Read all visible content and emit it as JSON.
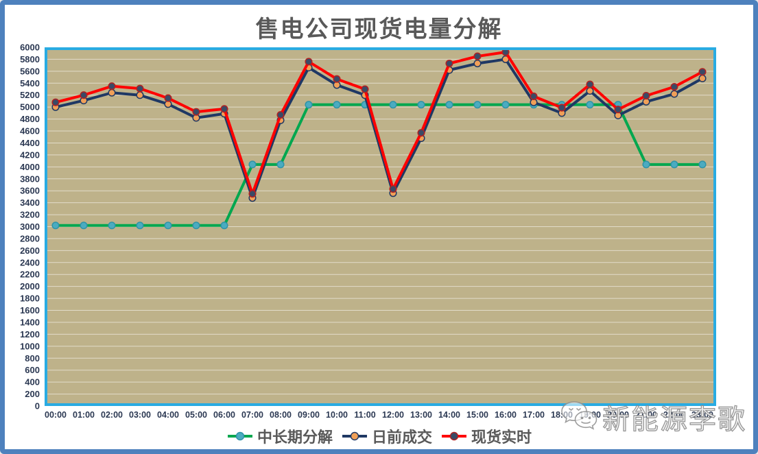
{
  "title": "售电公司现货电量分解",
  "watermark": {
    "text": "新能源李歌",
    "icon": "wechat-icon"
  },
  "colors": {
    "frame_border": "#4E81BD",
    "plot_background": "#BEB28A",
    "plot_border": "#29ABE2",
    "gridline": "rgba(255,255,255,0.55)",
    "axis_label": "#2B3852",
    "title_text": "#595959",
    "legend_text": "#595959"
  },
  "chart_data": {
    "type": "line",
    "title": "售电公司现货电量分解",
    "categories": [
      "00:00",
      "01:00",
      "02:00",
      "03:00",
      "04:00",
      "05:00",
      "06:00",
      "07:00",
      "08:00",
      "09:00",
      "10:00",
      "11:00",
      "12:00",
      "13:00",
      "14:00",
      "15:00",
      "16:00",
      "17:00",
      "18:00",
      "19:00",
      "20:00",
      "21:00",
      "22:00",
      "23:00"
    ],
    "series": [
      {
        "name": "中长期分解",
        "color": "#00A74F",
        "marker_fill": "#4BABC0",
        "marker_stroke": "#2F93A8",
        "values": [
          3020,
          3020,
          3020,
          3020,
          3020,
          3020,
          3020,
          4040,
          4040,
          5040,
          5040,
          5040,
          5040,
          5040,
          5040,
          5040,
          5040,
          5040,
          5040,
          5040,
          5040,
          4040,
          4040,
          4040
        ]
      },
      {
        "name": "日前成交",
        "color": "#1F3864",
        "marker_fill": "#F0A058",
        "marker_stroke": "#1F3864",
        "values": [
          5000,
          5110,
          5240,
          5200,
          5050,
          4820,
          4890,
          3480,
          4780,
          5660,
          5370,
          5200,
          3560,
          4480,
          5620,
          5730,
          5800,
          5080,
          4900,
          5270,
          4860,
          5090,
          5220,
          5480
        ]
      },
      {
        "name": "现货实时",
        "color": "#FF0000",
        "marker_fill": "#3A4A66",
        "marker_stroke": "#B22222",
        "values": [
          5080,
          5200,
          5350,
          5310,
          5150,
          4920,
          4970,
          3550,
          4870,
          5760,
          5470,
          5300,
          3630,
          4570,
          5730,
          5850,
          5920,
          5180,
          4990,
          5380,
          4960,
          5190,
          5340,
          5590
        ]
      }
    ],
    "ylim": [
      0,
      6000
    ],
    "ytick_step": 200,
    "grid": "horizontal",
    "legend_position": "bottom"
  }
}
